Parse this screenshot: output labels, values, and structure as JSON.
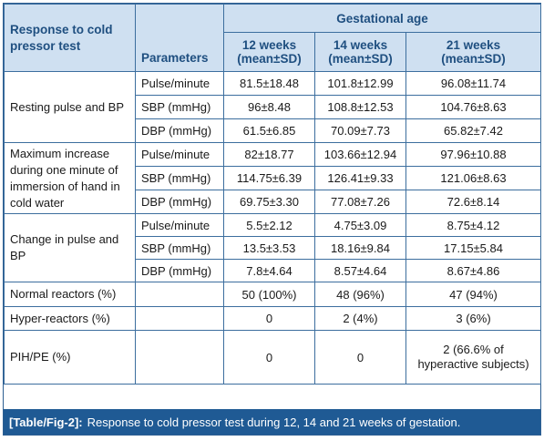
{
  "header": {
    "response_label": "Response to cold pressor test",
    "parameters_label": "Parameters",
    "gestational_age_label": "Gestational age",
    "columns": [
      {
        "week": "12 weeks",
        "stat": "(mean±SD)"
      },
      {
        "week": "14 weeks",
        "stat": "(mean±SD)"
      },
      {
        "week": "21 weeks",
        "stat": "(mean±SD)"
      }
    ]
  },
  "groups": [
    {
      "name": "Resting pulse and BP",
      "rows": [
        {
          "param": "Pulse/minute",
          "values": [
            "81.5±18.48",
            "101.8±12.99",
            "96.08±11.74"
          ]
        },
        {
          "param": "SBP (mmHg)",
          "values": [
            "96±8.48",
            "108.8±12.53",
            "104.76±8.63"
          ]
        },
        {
          "param": "DBP (mmHg)",
          "values": [
            "61.5±6.85",
            "70.09±7.73",
            "65.82±7.42"
          ]
        }
      ]
    },
    {
      "name": "Maximum increase during one minute of immersion of hand in cold water",
      "rows": [
        {
          "param": "Pulse/minute",
          "values": [
            "82±18.77",
            "103.66±12.94",
            "97.96±10.88"
          ]
        },
        {
          "param": "SBP (mmHg)",
          "values": [
            "114.75±6.39",
            "126.41±9.33",
            "121.06±8.63"
          ]
        },
        {
          "param": "DBP (mmHg)",
          "values": [
            "69.75±3.30",
            "77.08±7.26",
            "72.6±8.14"
          ]
        }
      ]
    },
    {
      "name": "Change in pulse and BP",
      "rows": [
        {
          "param": "Pulse/minute",
          "values": [
            "5.5±2.12",
            "4.75±3.09",
            "8.75±4.12"
          ]
        },
        {
          "param": "SBP (mmHg)",
          "values": [
            "13.5±3.53",
            "18.16±9.84",
            "17.15±5.84"
          ]
        },
        {
          "param": "DBP (mmHg)",
          "values": [
            "7.8±4.64",
            "8.57±4.64",
            "8.67±4.86"
          ]
        }
      ]
    }
  ],
  "summary_rows": [
    {
      "label": "Normal reactors (%)",
      "param": "",
      "values": [
        "50 (100%)",
        "48 (96%)",
        "47 (94%)"
      ]
    },
    {
      "label": "Hyper-reactors (%)",
      "param": "",
      "values": [
        "0",
        "2 (4%)",
        "3 (6%)"
      ]
    },
    {
      "label": "PIH/PE (%)",
      "param": "",
      "values": [
        "0",
        "0",
        "2 (66.6% of hyperactive subjects)"
      ]
    }
  ],
  "caption": {
    "tag": "[Table/Fig-2]:",
    "text": "Response to cold pressor test during 12, 14 and 21 weeks of gestation."
  }
}
